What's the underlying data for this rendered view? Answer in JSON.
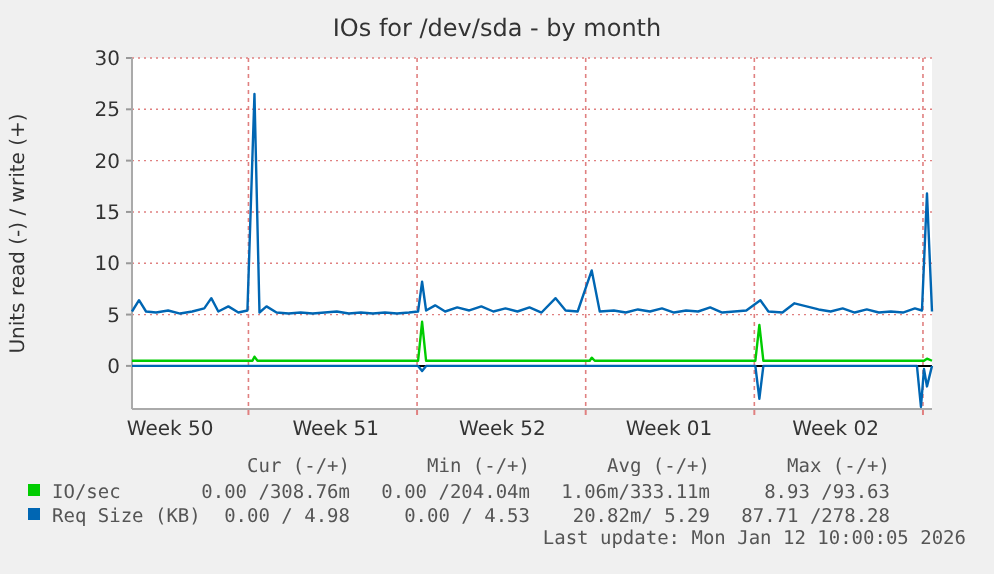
{
  "chart_data": {
    "type": "line",
    "title": "IOs for /dev/sda - by month",
    "ylabel": "Units read (-) / write (+)",
    "xlim": [
      "2025-12-10T04:00",
      "2026-01-12T09:00"
    ],
    "xticks": [
      {
        "value": "2025-12-11T18:00",
        "label": "Week 50"
      },
      {
        "value": "2025-12-15T00:00",
        "label": null
      },
      {
        "value": "2025-12-18T15:00",
        "label": "Week 51"
      },
      {
        "value": "2025-12-22T00:00",
        "label": null
      },
      {
        "value": "2025-12-25T13:00",
        "label": "Week 52"
      },
      {
        "value": "2025-12-29T00:00",
        "label": null
      },
      {
        "value": "2026-01-01T11:00",
        "label": "Week 01"
      },
      {
        "value": "2026-01-05T00:00",
        "label": null
      },
      {
        "value": "2026-01-08T09:00",
        "label": "Week 02"
      },
      {
        "value": "2026-01-12T00:00",
        "label": null
      }
    ],
    "ylim": [
      -4.2,
      30
    ],
    "yticks": [
      0,
      5,
      10,
      15,
      20,
      25,
      30
    ],
    "grid": true,
    "legend": "bottom",
    "ref_lines": [
      {
        "axis": "y",
        "value": 0,
        "color": "#000000"
      }
    ],
    "series": [
      {
        "name": "IO/sec",
        "color": "#00cc00",
        "x": [
          "2025-12-10T04:00",
          "2025-12-15T04:00",
          "2025-12-15T06:00",
          "2025-12-15T09:00",
          "2025-12-22T01:00",
          "2025-12-22T05:00",
          "2025-12-22T09:00",
          "2025-12-29T04:00",
          "2025-12-29T06:00",
          "2025-12-29T09:00",
          "2026-01-05T01:00",
          "2026-01-05T05:00",
          "2026-01-05T09:00",
          "2026-01-12T01:00",
          "2026-01-12T04:00",
          "2026-01-12T09:00"
        ],
        "values": [
          0.5,
          0.5,
          0.9,
          0.5,
          0.5,
          4.3,
          0.5,
          0.5,
          0.8,
          0.5,
          0.5,
          4.0,
          0.5,
          0.5,
          0.7,
          0.5
        ]
      },
      {
        "name": "Req Size (KB)",
        "color": "#0066b3",
        "x": [
          "2025-12-10T04:00",
          "2025-12-10T11:00",
          "2025-12-10T18:00",
          "2025-12-11T04:00",
          "2025-12-11T16:00",
          "2025-12-12T04:00",
          "2025-12-12T16:00",
          "2025-12-13T04:00",
          "2025-12-13T11:00",
          "2025-12-13T18:00",
          "2025-12-14T04:00",
          "2025-12-14T14:00",
          "2025-12-14T23:00",
          "2025-12-15T06:00",
          "2025-12-15T11:00",
          "2025-12-15T18:00",
          "2025-12-16T04:00",
          "2025-12-16T16:00",
          "2025-12-17T04:00",
          "2025-12-17T16:00",
          "2025-12-18T04:00",
          "2025-12-18T16:00",
          "2025-12-19T04:00",
          "2025-12-19T16:00",
          "2025-12-20T04:00",
          "2025-12-20T16:00",
          "2025-12-21T04:00",
          "2025-12-21T16:00",
          "2025-12-22T01:00",
          "2025-12-22T05:00",
          "2025-12-22T09:00",
          "2025-12-22T18:00",
          "2025-12-23T04:00",
          "2025-12-23T16:00",
          "2025-12-24T04:00",
          "2025-12-24T16:00",
          "2025-12-25T04:00",
          "2025-12-25T16:00",
          "2025-12-26T04:00",
          "2025-12-26T16:00",
          "2025-12-27T04:00",
          "2025-12-27T18:00",
          "2025-12-28T04:00",
          "2025-12-28T16:00",
          "2025-12-29T06:00",
          "2025-12-29T14:00",
          "2025-12-30T04:00",
          "2025-12-30T16:00",
          "2025-12-31T04:00",
          "2025-12-31T16:00",
          "2026-01-01T04:00",
          "2026-01-01T16:00",
          "2026-01-02T04:00",
          "2026-01-02T16:00",
          "2026-01-03T04:00",
          "2026-01-03T16:00",
          "2026-01-04T04:00",
          "2026-01-04T16:00",
          "2026-01-05T06:00",
          "2026-01-05T14:00",
          "2026-01-06T04:00",
          "2026-01-06T16:00",
          "2026-01-07T04:00",
          "2026-01-07T16:00",
          "2026-01-08T04:00",
          "2026-01-08T16:00",
          "2026-01-09T04:00",
          "2026-01-09T16:00",
          "2026-01-10T04:00",
          "2026-01-10T16:00",
          "2026-01-11T04:00",
          "2026-01-11T16:00",
          "2026-01-11T23:00",
          "2026-01-12T04:00",
          "2026-01-12T09:00"
        ],
        "values": [
          5.3,
          6.4,
          5.3,
          5.2,
          5.4,
          5.1,
          5.3,
          5.6,
          6.6,
          5.3,
          5.8,
          5.2,
          5.4,
          26.5,
          5.2,
          5.8,
          5.2,
          5.1,
          5.2,
          5.1,
          5.2,
          5.3,
          5.1,
          5.2,
          5.1,
          5.2,
          5.1,
          5.2,
          5.3,
          8.2,
          5.4,
          5.9,
          5.3,
          5.7,
          5.4,
          5.8,
          5.3,
          5.6,
          5.3,
          5.7,
          5.2,
          6.6,
          5.4,
          5.3,
          9.3,
          5.3,
          5.4,
          5.2,
          5.5,
          5.3,
          5.6,
          5.2,
          5.4,
          5.3,
          5.7,
          5.2,
          5.3,
          5.4,
          6.4,
          5.3,
          5.2,
          6.1,
          5.8,
          5.5,
          5.3,
          5.6,
          5.2,
          5.5,
          5.2,
          5.3,
          5.2,
          5.6,
          5.4,
          16.8,
          5.3
        ]
      },
      {
        "color": "#0066b3",
        "x": [
          "2025-12-10T04:00",
          "2025-12-22T01:00",
          "2025-12-22T05:00",
          "2025-12-22T09:00",
          "2026-01-05T01:00",
          "2026-01-05T05:00",
          "2026-01-05T09:00",
          "2026-01-11T18:00",
          "2026-01-11T22:00",
          "2026-01-12T01:00",
          "2026-01-12T04:00",
          "2026-01-12T09:00"
        ],
        "values": [
          0,
          0,
          -0.5,
          0,
          0,
          -3.2,
          0,
          0,
          -4,
          -0.3,
          -2,
          0
        ]
      }
    ],
    "annotations": [
      "Cur (-/+)",
      "Min (-/+)",
      "Avg (-/+)",
      "Max (-/+)",
      "0.00 /308.76m",
      "0.00 /204.04m",
      "1.06m/333.11m",
      "8.93 /93.63",
      "0.00 / 4.98",
      "0.00 / 4.53",
      "20.82m/ 5.29",
      "87.71 /278.28",
      "Last update: Mon Jan 12 10:00:05 2026"
    ]
  }
}
